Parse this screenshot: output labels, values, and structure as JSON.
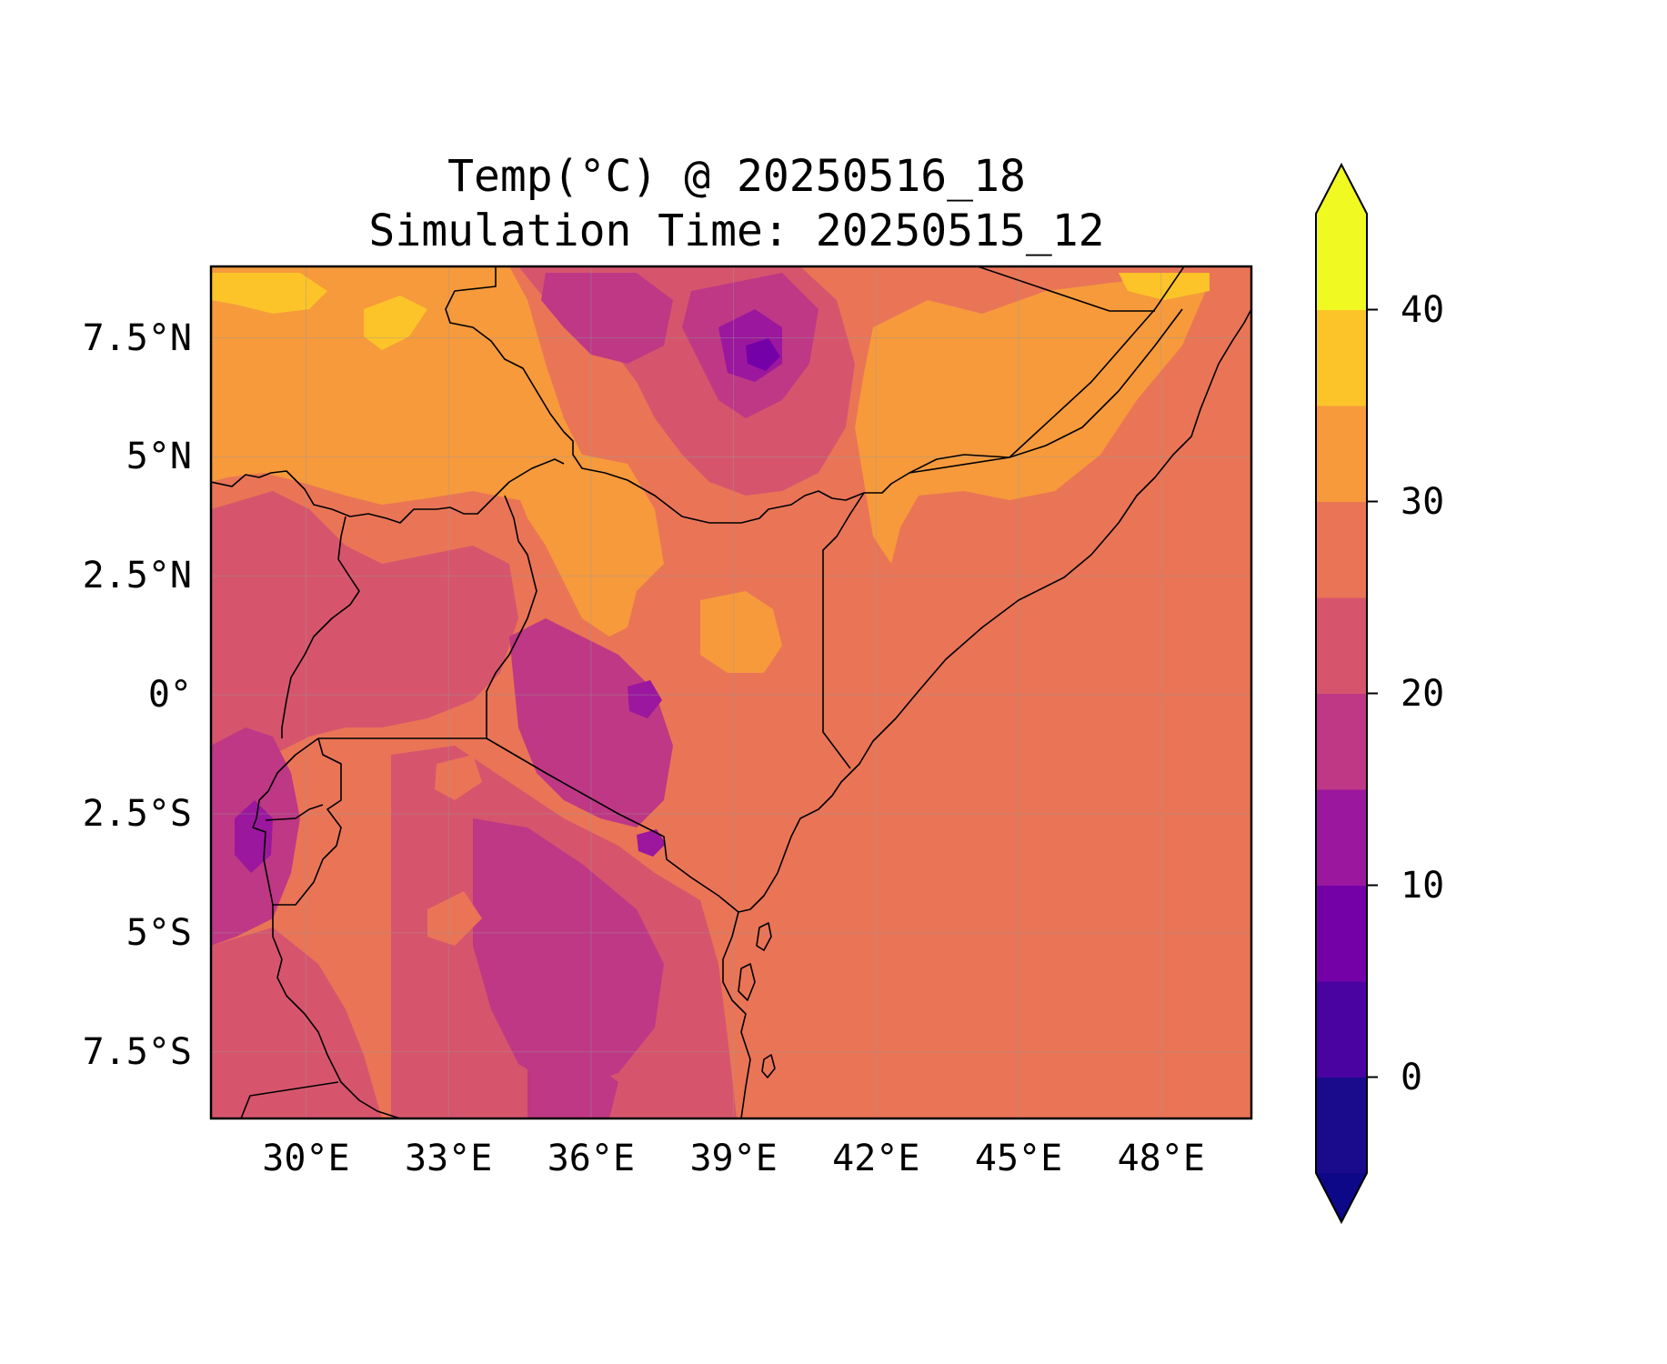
{
  "title": {
    "line1": "Temp(°C) @ 20250516_18",
    "line2": "Simulation Time: 20250515_12"
  },
  "map": {
    "extent": {
      "lon": [
        28.0,
        49.9
      ],
      "lat": [
        -8.9,
        9.0
      ]
    },
    "lat_ticks": [
      {
        "value": 7.5,
        "label": "7.5°N"
      },
      {
        "value": 5,
        "label": "5°N"
      },
      {
        "value": 2.5,
        "label": "2.5°N"
      },
      {
        "value": 0,
        "label": "0°"
      },
      {
        "value": -2.5,
        "label": "2.5°S"
      },
      {
        "value": -5,
        "label": "5°S"
      },
      {
        "value": -7.5,
        "label": "7.5°S"
      }
    ],
    "lon_ticks": [
      {
        "value": 30,
        "label": "30°E"
      },
      {
        "value": 33,
        "label": "33°E"
      },
      {
        "value": 36,
        "label": "36°E"
      },
      {
        "value": 39,
        "label": "39°E"
      },
      {
        "value": 42,
        "label": "42°E"
      },
      {
        "value": 45,
        "label": "45°E"
      },
      {
        "value": 48,
        "label": "48°E"
      }
    ],
    "gridlines": true,
    "ocean_value_c": 27
  },
  "colorbar": {
    "levels": [
      -5,
      0,
      5,
      10,
      15,
      20,
      25,
      30,
      35,
      40,
      45
    ],
    "colors": [
      "#1a0a8c",
      "#4a03a1",
      "#7401a8",
      "#9b179e",
      "#be3885",
      "#d6556d",
      "#e97556",
      "#f69a3c",
      "#fcc429",
      "#f0f921"
    ],
    "under_color": "#0d0887",
    "over_color": "#f0f921",
    "tick_labels": [
      {
        "value": 0,
        "label": "0"
      },
      {
        "value": 10,
        "label": "10"
      },
      {
        "value": 20,
        "label": "20"
      },
      {
        "value": 30,
        "label": "30"
      },
      {
        "value": 40,
        "label": "40"
      }
    ],
    "extend": "both"
  }
}
